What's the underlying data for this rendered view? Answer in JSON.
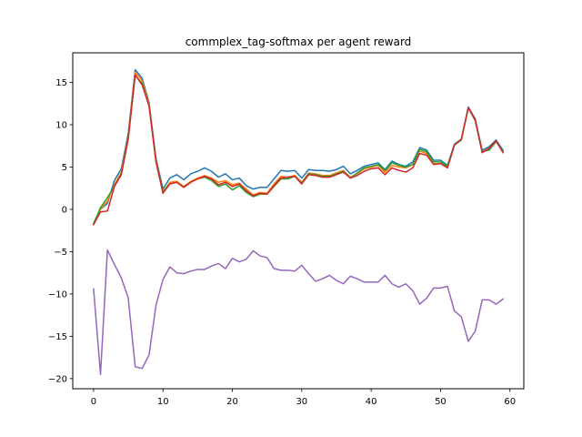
{
  "chart_data": {
    "type": "line",
    "title": "commplex_tag-softmax per agent reward",
    "xlabel": "",
    "ylabel": "",
    "xlim": [
      -3,
      62
    ],
    "ylim": [
      -21.2,
      18.5
    ],
    "xticks": [
      0,
      10,
      20,
      30,
      40,
      50,
      60
    ],
    "yticks": [
      -20,
      -15,
      -10,
      -5,
      0,
      5,
      10,
      15
    ],
    "grid": false,
    "legend": "none",
    "x": [
      0,
      1,
      2,
      3,
      4,
      5,
      6,
      7,
      8,
      9,
      10,
      11,
      12,
      13,
      14,
      15,
      16,
      17,
      18,
      19,
      20,
      21,
      22,
      23,
      24,
      25,
      26,
      27,
      28,
      29,
      30,
      31,
      32,
      33,
      34,
      35,
      36,
      37,
      38,
      39,
      40,
      41,
      42,
      43,
      44,
      45,
      46,
      47,
      48,
      49,
      50,
      51,
      52,
      53,
      54,
      55,
      56,
      57,
      58,
      59
    ],
    "series": [
      {
        "color": "#1f77b4",
        "values": [
          -1.7,
          0.0,
          0.7,
          3.4,
          4.8,
          9.0,
          16.5,
          15.5,
          12.6,
          6.0,
          2.4,
          3.7,
          4.1,
          3.5,
          4.2,
          4.5,
          4.9,
          4.5,
          3.8,
          4.2,
          3.5,
          3.7,
          2.8,
          2.4,
          2.6,
          2.6,
          3.6,
          4.6,
          4.5,
          4.6,
          3.7,
          4.7,
          4.6,
          4.6,
          4.5,
          4.7,
          5.1,
          4.2,
          4.6,
          5.1,
          5.3,
          5.5,
          4.7,
          5.7,
          5.3,
          5.1,
          5.6,
          7.3,
          7.0,
          5.8,
          5.8,
          5.2,
          7.7,
          8.3,
          12.1,
          10.7,
          7.0,
          7.4,
          8.2,
          7.0
        ]
      },
      {
        "color": "#ff7f0e",
        "values": [
          -1.7,
          0.0,
          1.0,
          2.9,
          4.4,
          8.7,
          16.2,
          15.2,
          12.4,
          5.8,
          2.0,
          3.2,
          3.3,
          2.7,
          3.3,
          3.7,
          4.0,
          3.7,
          3.2,
          3.4,
          2.9,
          3.1,
          2.4,
          1.7,
          2.0,
          1.9,
          3.0,
          3.9,
          3.8,
          4.0,
          3.2,
          4.3,
          4.2,
          4.0,
          4.0,
          4.3,
          4.6,
          3.8,
          4.2,
          4.8,
          5.0,
          5.2,
          4.4,
          5.2,
          5.0,
          4.9,
          5.3,
          6.9,
          6.6,
          5.4,
          5.4,
          5.0,
          7.6,
          8.2,
          12.0,
          10.5,
          6.8,
          7.2,
          8.0,
          6.8
        ]
      },
      {
        "color": "#2ca02c",
        "values": [
          -1.7,
          0.2,
          1.4,
          2.7,
          4.2,
          8.5,
          15.8,
          14.9,
          12.2,
          5.6,
          2.1,
          3.0,
          3.2,
          2.6,
          3.2,
          3.6,
          3.8,
          3.4,
          2.7,
          3.0,
          2.3,
          2.8,
          2.0,
          1.5,
          1.8,
          1.8,
          2.7,
          3.6,
          3.6,
          3.9,
          3.1,
          4.2,
          4.1,
          3.9,
          3.9,
          4.2,
          4.5,
          3.7,
          4.3,
          4.9,
          5.1,
          5.3,
          4.6,
          5.5,
          5.2,
          5.0,
          5.3,
          7.1,
          6.8,
          5.6,
          5.6,
          5.1,
          7.6,
          8.2,
          12.0,
          10.5,
          6.8,
          7.0,
          8.0,
          6.9
        ]
      },
      {
        "color": "#d62728",
        "values": [
          -1.8,
          -0.3,
          -0.2,
          2.7,
          4.1,
          8.3,
          15.9,
          14.7,
          12.2,
          5.6,
          1.9,
          3.0,
          3.2,
          2.6,
          3.2,
          3.6,
          3.9,
          3.6,
          2.9,
          3.2,
          2.7,
          3.0,
          2.2,
          1.6,
          1.9,
          1.8,
          2.8,
          3.7,
          3.8,
          3.9,
          3.0,
          4.1,
          4.0,
          3.8,
          3.8,
          4.1,
          4.4,
          3.7,
          4.0,
          4.5,
          4.8,
          4.9,
          4.1,
          4.9,
          4.6,
          4.4,
          4.9,
          6.6,
          6.4,
          5.3,
          5.4,
          4.9,
          7.6,
          8.3,
          12.0,
          10.6,
          6.7,
          7.2,
          8.1,
          6.7
        ]
      },
      {
        "color": "#9467bd",
        "values": [
          -9.4,
          -19.5,
          -4.8,
          -6.5,
          -8.1,
          -10.5,
          -18.6,
          -18.8,
          -17.2,
          -11.3,
          -8.3,
          -6.8,
          -7.5,
          -7.6,
          -7.3,
          -7.1,
          -7.1,
          -6.7,
          -6.4,
          -7.0,
          -5.8,
          -6.2,
          -5.9,
          -4.9,
          -5.5,
          -5.7,
          -7.0,
          -7.2,
          -7.2,
          -7.3,
          -6.6,
          -7.6,
          -8.5,
          -8.2,
          -7.8,
          -8.4,
          -8.8,
          -7.9,
          -8.2,
          -8.6,
          -8.6,
          -8.6,
          -7.8,
          -8.8,
          -9.2,
          -8.8,
          -9.6,
          -11.2,
          -10.5,
          -9.3,
          -9.3,
          -9.1,
          -12.0,
          -12.7,
          -15.6,
          -14.4,
          -10.7,
          -10.7,
          -11.2,
          -10.6
        ]
      }
    ]
  }
}
